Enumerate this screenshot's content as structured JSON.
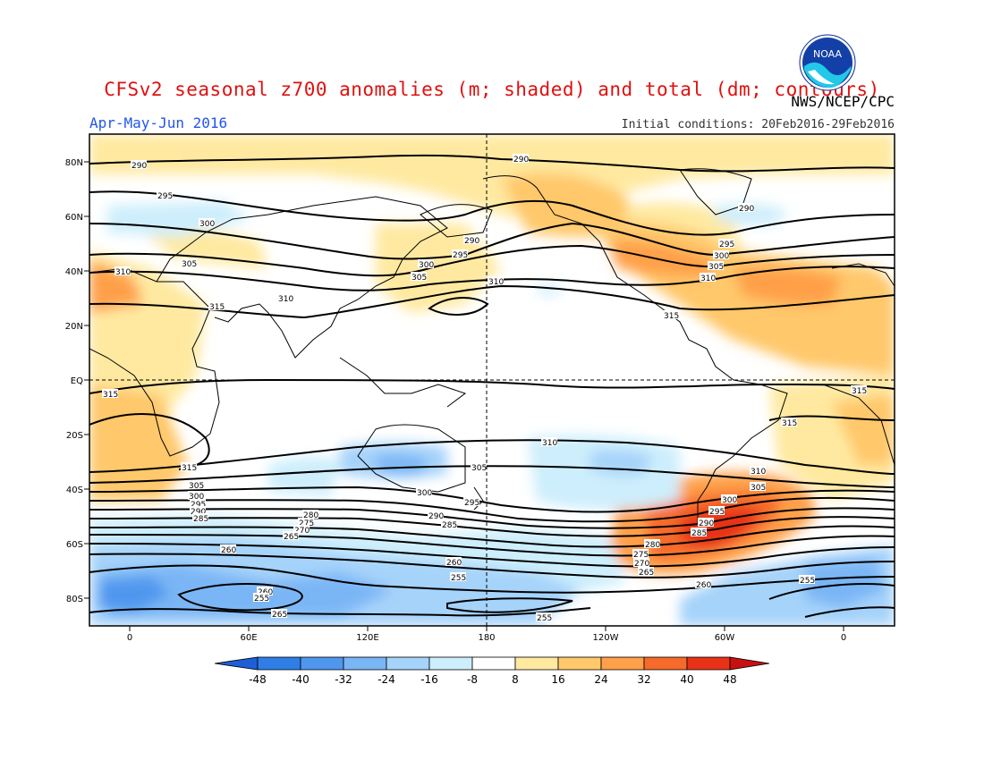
{
  "title": "CFSv2 seasonal z700 anomalies (m; shaded) and total (dm; contours)",
  "agency": "NWS/NCEP/CPC",
  "period": "Apr-May-Jun 2016",
  "initial_conditions": "Initial conditions: 20Feb2016-29Feb2016",
  "logo_text": "NOAA",
  "lat_labels": [
    "80N",
    "60N",
    "40N",
    "20N",
    "EQ",
    "20S",
    "40S",
    "60S",
    "80S"
  ],
  "lon_labels": [
    "0",
    "60E",
    "120E",
    "180",
    "120W",
    "60W",
    "0"
  ],
  "colorbar": {
    "labels": [
      "-48",
      "-40",
      "-32",
      "-24",
      "-16",
      "-8",
      "8",
      "16",
      "24",
      "32",
      "40",
      "48"
    ],
    "colors": [
      "#1e5fd8",
      "#2f7ee6",
      "#4f97ee",
      "#7ab6f5",
      "#a6d3fa",
      "#cdeefc",
      "#ffffff",
      "#ffe9a0",
      "#ffc86a",
      "#ffa04a",
      "#f66a2a",
      "#e83218",
      "#c81010"
    ]
  },
  "contour_labels": [
    "290",
    "295",
    "300",
    "305",
    "310",
    "315",
    "280",
    "285",
    "275",
    "270",
    "265",
    "260",
    "255"
  ]
}
